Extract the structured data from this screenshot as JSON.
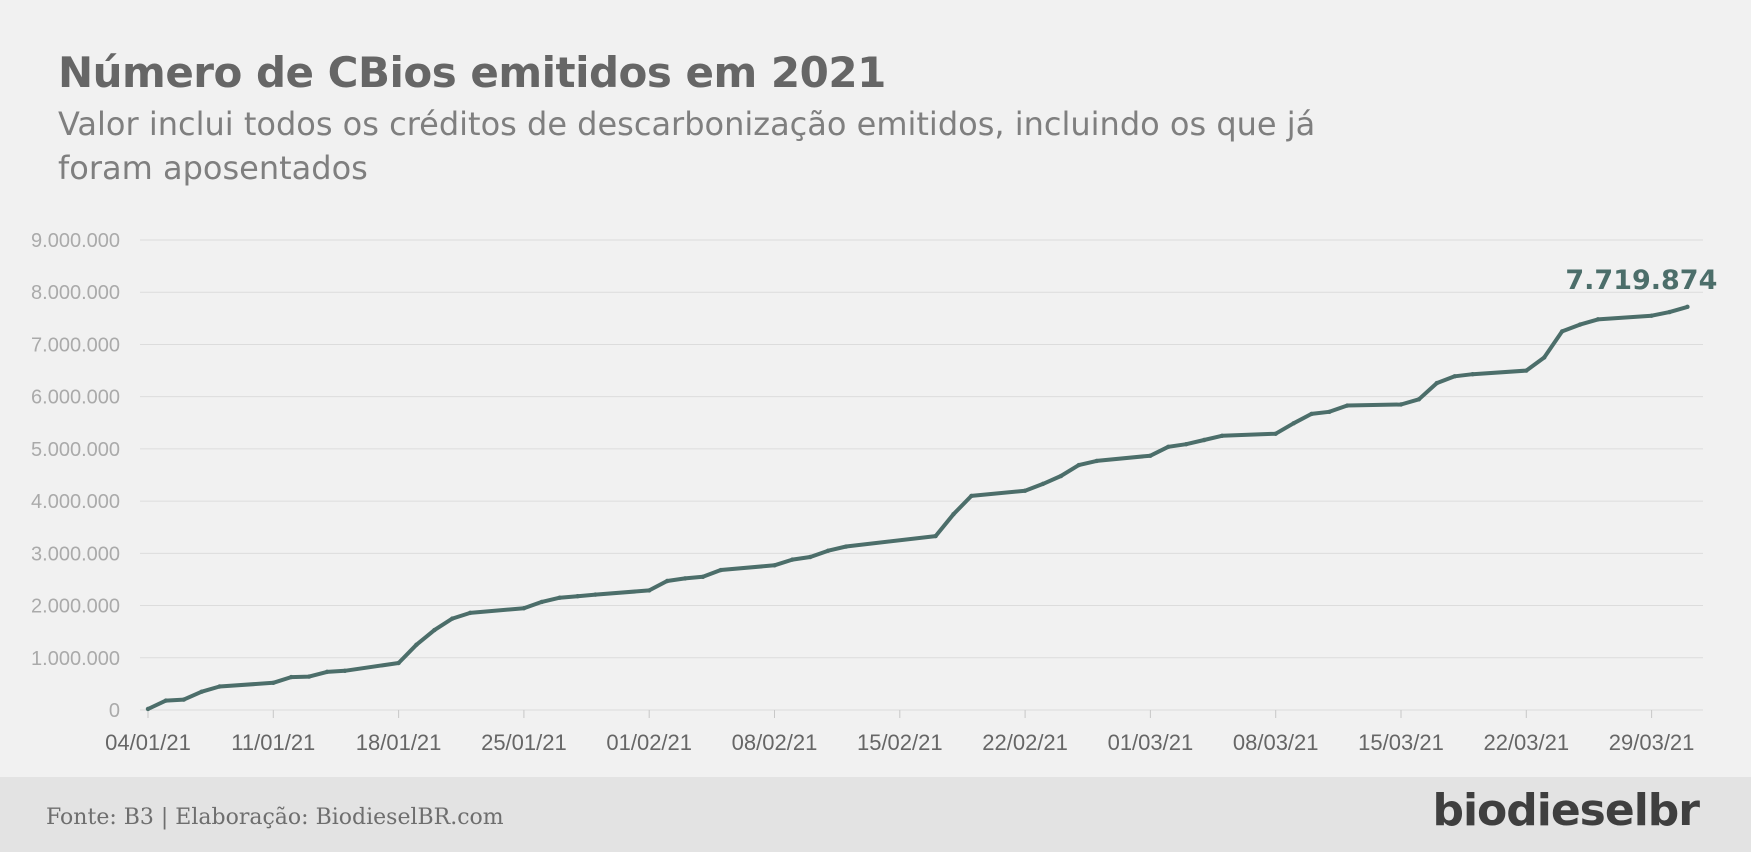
{
  "title": "Número de CBios emitidos em 2021",
  "subtitle": "Valor inclui todos os créditos de descarbonização emitidos, incluindo os que já foram aposentados",
  "footer": {
    "source": "Fonte: B3 | Elaboração: BiodieselBR.com",
    "logo": "biodieselbr"
  },
  "colors": {
    "line": "#4c6e6a",
    "grid": "#dcdcdc",
    "tick_label": "#aaaaaa",
    "x_tick_label": "#666666"
  },
  "chart_data": {
    "type": "line",
    "title": "Número de CBios emitidos em 2021",
    "xlabel": "",
    "ylabel": "",
    "ylim": [
      0,
      9000000
    ],
    "y_ticks": [
      0,
      1000000,
      2000000,
      3000000,
      4000000,
      5000000,
      6000000,
      7000000,
      8000000,
      9000000
    ],
    "y_tick_labels": [
      "0",
      "1.000.000",
      "2.000.000",
      "3.000.000",
      "4.000.000",
      "5.000.000",
      "6.000.000",
      "7.000.000",
      "8.000.000",
      "9.000.000"
    ],
    "x_ticks": [
      "2021-01-04",
      "2021-01-11",
      "2021-01-18",
      "2021-01-25",
      "2021-02-01",
      "2021-02-08",
      "2021-02-15",
      "2021-02-22",
      "2021-03-01",
      "2021-03-08",
      "2021-03-15",
      "2021-03-22",
      "2021-03-29"
    ],
    "x_tick_labels": [
      "04/01/21",
      "11/01/21",
      "18/01/21",
      "25/01/21",
      "01/02/21",
      "08/02/21",
      "15/02/21",
      "22/02/21",
      "01/03/21",
      "08/03/21",
      "15/03/21",
      "22/03/21",
      "29/03/21"
    ],
    "grid": true,
    "end_label": "7.719.874",
    "series": [
      {
        "x": [
          "2021-01-04",
          "2021-01-05",
          "2021-01-06",
          "2021-01-07",
          "2021-01-08",
          "2021-01-11",
          "2021-01-12",
          "2021-01-13",
          "2021-01-14",
          "2021-01-15",
          "2021-01-18",
          "2021-01-19",
          "2021-01-20",
          "2021-01-21",
          "2021-01-22",
          "2021-01-25",
          "2021-01-26",
          "2021-01-27",
          "2021-01-28",
          "2021-01-29",
          "2021-02-01",
          "2021-02-02",
          "2021-02-03",
          "2021-02-04",
          "2021-02-05",
          "2021-02-08",
          "2021-02-09",
          "2021-02-10",
          "2021-02-11",
          "2021-02-12",
          "2021-02-17",
          "2021-02-18",
          "2021-02-19",
          "2021-02-22",
          "2021-02-23",
          "2021-02-24",
          "2021-02-25",
          "2021-02-26",
          "2021-03-01",
          "2021-03-02",
          "2021-03-03",
          "2021-03-04",
          "2021-03-05",
          "2021-03-08",
          "2021-03-09",
          "2021-03-10",
          "2021-03-11",
          "2021-03-12",
          "2021-03-15",
          "2021-03-16",
          "2021-03-17",
          "2021-03-18",
          "2021-03-19",
          "2021-03-22",
          "2021-03-23",
          "2021-03-24",
          "2021-03-25",
          "2021-03-26",
          "2021-03-29",
          "2021-03-30",
          "2021-03-31"
        ],
        "values": [
          20000,
          180000,
          200000,
          350000,
          450000,
          520000,
          630000,
          640000,
          730000,
          750000,
          900000,
          1250000,
          1530000,
          1750000,
          1860000,
          1950000,
          2070000,
          2150000,
          2180000,
          2210000,
          2290000,
          2470000,
          2520000,
          2550000,
          2680000,
          2770000,
          2880000,
          2930000,
          3050000,
          3130000,
          3330000,
          3750000,
          4100000,
          4200000,
          4330000,
          4480000,
          4690000,
          4770000,
          4870000,
          5040000,
          5090000,
          5170000,
          5250000,
          5290000,
          5490000,
          5670000,
          5710000,
          5830000,
          5850000,
          5950000,
          6260000,
          6390000,
          6430000,
          6500000,
          6750000,
          7250000,
          7380000,
          7480000,
          7550000,
          7620000,
          7719874
        ]
      }
    ]
  }
}
